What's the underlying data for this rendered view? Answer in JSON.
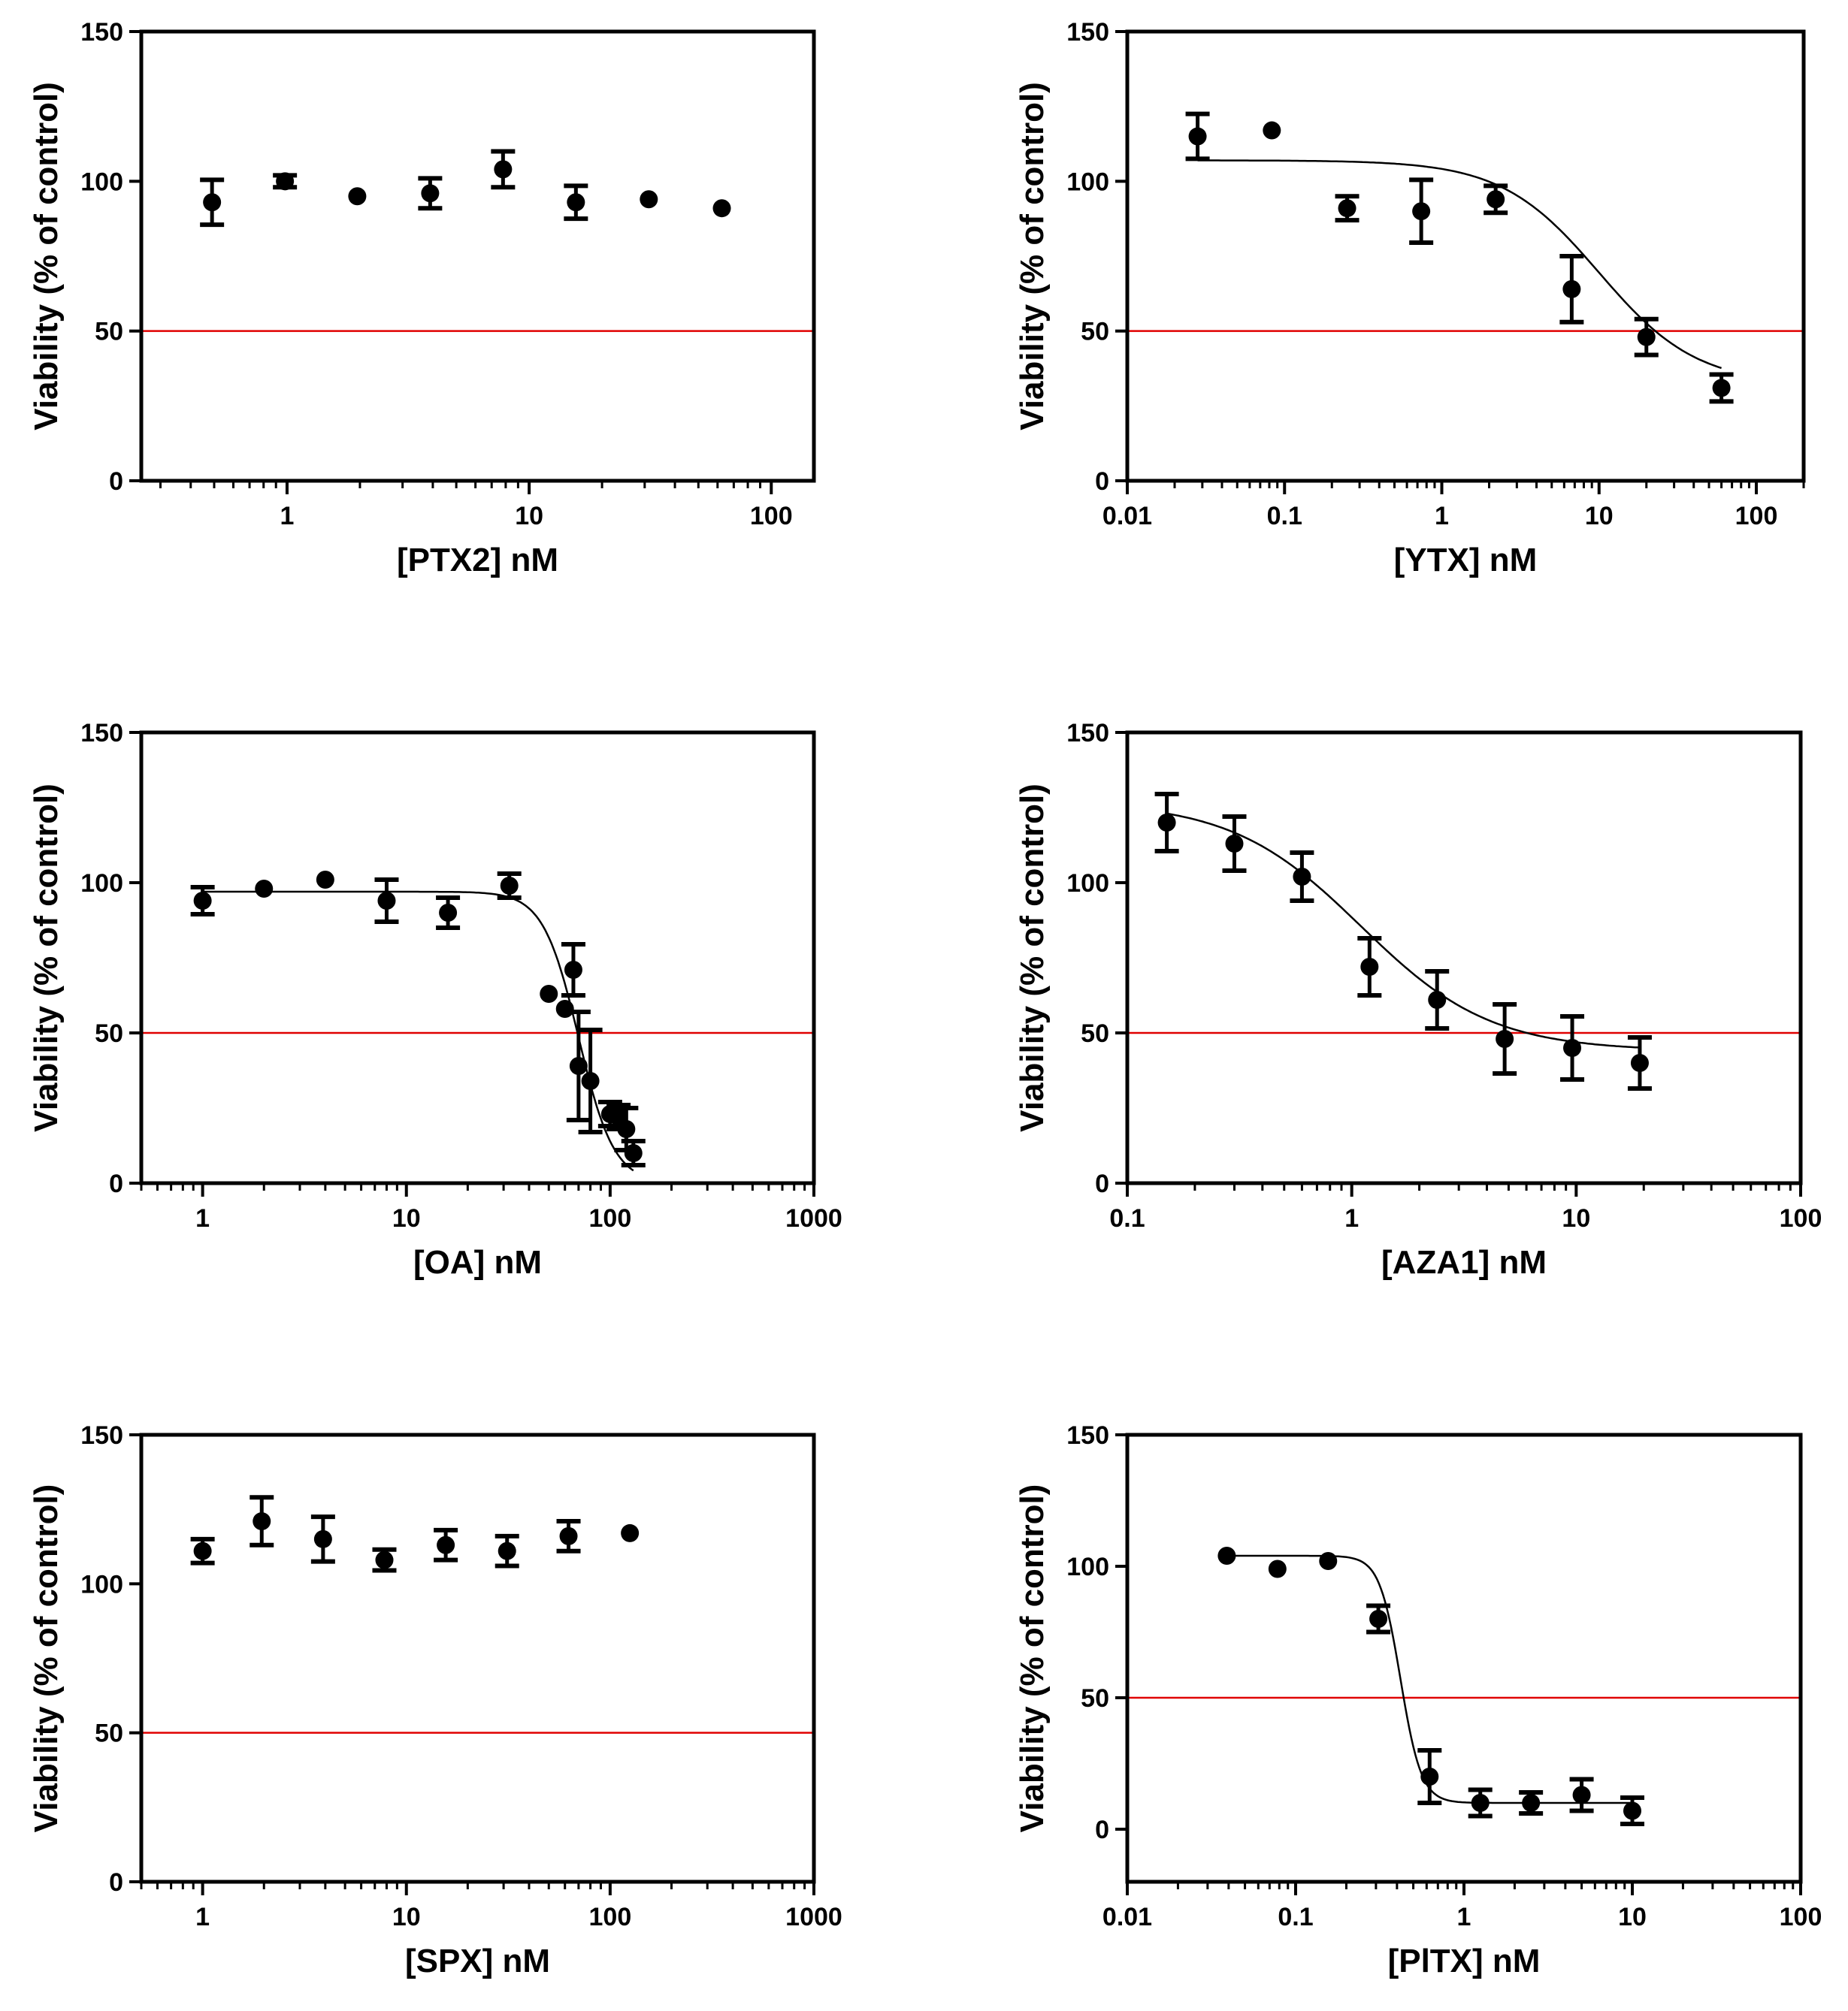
{
  "figure": {
    "reference_line": {
      "value": 50,
      "color": "#e00000"
    },
    "marker_color": "#000000"
  },
  "chart_data": [
    {
      "id": "ptx2",
      "type": "scatter",
      "title": "",
      "xlabel": "[PTX2] nM",
      "ylabel": "Viability (% of control)",
      "xscale": "log",
      "xlim": [
        0.25,
        150
      ],
      "ylim": [
        0,
        150
      ],
      "xticks": [
        1,
        10,
        100
      ],
      "xtick_labels": [
        "1",
        "10",
        "100"
      ],
      "yticks": [
        0,
        50,
        100,
        150
      ],
      "ytick_labels": [
        "0",
        "50",
        "100",
        "150"
      ],
      "points": [
        {
          "x": 0.49,
          "y": 93,
          "err": 7.5
        },
        {
          "x": 0.98,
          "y": 100,
          "err": 2
        },
        {
          "x": 1.95,
          "y": 95,
          "err": 0
        },
        {
          "x": 3.9,
          "y": 96,
          "err": 5
        },
        {
          "x": 7.8,
          "y": 104,
          "err": 6
        },
        {
          "x": 15.6,
          "y": 93,
          "err": 5.5
        },
        {
          "x": 31.2,
          "y": 94,
          "err": 0
        },
        {
          "x": 62.5,
          "y": 91,
          "err": 0
        }
      ],
      "curve": null
    },
    {
      "id": "ytx",
      "type": "scatter",
      "title": "",
      "xlabel": "[YTX] nM",
      "ylabel": "Viability (% of control)",
      "xscale": "log",
      "xlim": [
        0.01,
        200
      ],
      "ylim": [
        0,
        150
      ],
      "xticks": [
        0.01,
        0.1,
        1,
        10,
        100
      ],
      "xtick_labels": [
        "0.01",
        "0.1",
        "1",
        "10",
        "100"
      ],
      "yticks": [
        0,
        50,
        100,
        150
      ],
      "ytick_labels": [
        "0",
        "50",
        "100",
        "150"
      ],
      "points": [
        {
          "x": 0.028,
          "y": 115,
          "err": 7.5
        },
        {
          "x": 0.083,
          "y": 117,
          "err": 0
        },
        {
          "x": 0.25,
          "y": 91,
          "err": 4
        },
        {
          "x": 0.74,
          "y": 90,
          "err": 10.5
        },
        {
          "x": 2.2,
          "y": 94,
          "err": 4.5
        },
        {
          "x": 6.7,
          "y": 64,
          "err": 11
        },
        {
          "x": 20,
          "y": 48,
          "err": 6
        },
        {
          "x": 60,
          "y": 31,
          "err": 4.5
        }
      ],
      "curve": {
        "top": 107,
        "bottom": 32,
        "ec50": 10,
        "hill": 1.4,
        "x_from": 0.028,
        "x_to": 60
      }
    },
    {
      "id": "oa",
      "type": "scatter",
      "title": "",
      "xlabel": "[OA] nM",
      "ylabel": "Viability (% of control)",
      "xscale": "log",
      "xlim": [
        0.5,
        1000
      ],
      "ylim": [
        0,
        150
      ],
      "xticks": [
        1,
        10,
        100,
        1000
      ],
      "xtick_labels": [
        "1",
        "10",
        "100",
        "1000"
      ],
      "yticks": [
        0,
        50,
        100,
        150
      ],
      "ytick_labels": [
        "0",
        "50",
        "100",
        "150"
      ],
      "points": [
        {
          "x": 1,
          "y": 94,
          "err": 4.5
        },
        {
          "x": 2,
          "y": 98,
          "err": 0
        },
        {
          "x": 4,
          "y": 101,
          "err": 0
        },
        {
          "x": 8,
          "y": 94,
          "err": 7
        },
        {
          "x": 16,
          "y": 90,
          "err": 5
        },
        {
          "x": 32,
          "y": 99,
          "err": 4
        },
        {
          "x": 50,
          "y": 63,
          "err": 0
        },
        {
          "x": 60,
          "y": 58,
          "err": 0
        },
        {
          "x": 66,
          "y": 71,
          "err": 8.5
        },
        {
          "x": 70,
          "y": 39,
          "err": 18
        },
        {
          "x": 80,
          "y": 34,
          "err": 17
        },
        {
          "x": 100,
          "y": 23,
          "err": 4
        },
        {
          "x": 110,
          "y": 22,
          "err": 4
        },
        {
          "x": 120,
          "y": 18,
          "err": 7
        },
        {
          "x": 130,
          "y": 10,
          "err": 4
        }
      ],
      "curve": {
        "top": 97,
        "bottom": 0,
        "ec50": 70,
        "hill": 5,
        "x_from": 1,
        "x_to": 130
      }
    },
    {
      "id": "aza1",
      "type": "scatter",
      "title": "",
      "xlabel": "[AZA1] nM",
      "ylabel": "Viability (% of control)",
      "xscale": "log",
      "xlim": [
        0.1,
        100
      ],
      "ylim": [
        0,
        150
      ],
      "xticks": [
        0.1,
        1,
        10,
        100
      ],
      "xtick_labels": [
        "0.1",
        "1",
        "10",
        "100"
      ],
      "yticks": [
        0,
        50,
        100,
        150
      ],
      "ytick_labels": [
        "0",
        "50",
        "100",
        "150"
      ],
      "points": [
        {
          "x": 0.15,
          "y": 120,
          "err": 9.5
        },
        {
          "x": 0.3,
          "y": 113,
          "err": 9
        },
        {
          "x": 0.6,
          "y": 102,
          "err": 8
        },
        {
          "x": 1.2,
          "y": 72,
          "err": 9.5
        },
        {
          "x": 2.4,
          "y": 61,
          "err": 9.5
        },
        {
          "x": 4.8,
          "y": 48,
          "err": 11.5
        },
        {
          "x": 9.6,
          "y": 45,
          "err": 10.5
        },
        {
          "x": 19.2,
          "y": 40,
          "err": 8.5
        }
      ],
      "curve": {
        "top": 127,
        "bottom": 44,
        "ec50": 1.1,
        "hill": 1.5,
        "x_from": 0.15,
        "x_to": 19.2
      }
    },
    {
      "id": "spx",
      "type": "scatter",
      "title": "",
      "xlabel": "[SPX] nM",
      "ylabel": "Viability (% of control)",
      "xscale": "log",
      "xlim": [
        0.5,
        1000
      ],
      "ylim": [
        0,
        150
      ],
      "xticks": [
        1,
        10,
        100,
        1000
      ],
      "xtick_labels": [
        "1",
        "10",
        "100",
        "1000"
      ],
      "yticks": [
        0,
        50,
        100,
        150
      ],
      "ytick_labels": [
        "0",
        "50",
        "100",
        "150"
      ],
      "points": [
        {
          "x": 1,
          "y": 111,
          "err": 4
        },
        {
          "x": 1.95,
          "y": 121,
          "err": 8
        },
        {
          "x": 3.9,
          "y": 115,
          "err": 7.5
        },
        {
          "x": 7.8,
          "y": 108,
          "err": 3.5
        },
        {
          "x": 15.6,
          "y": 113,
          "err": 5
        },
        {
          "x": 31.2,
          "y": 111,
          "err": 5
        },
        {
          "x": 62.5,
          "y": 116,
          "err": 5
        },
        {
          "x": 125,
          "y": 117,
          "err": 0
        }
      ],
      "curve": null
    },
    {
      "id": "pitx",
      "type": "scatter",
      "title": "",
      "xlabel": "[PlTX] nM",
      "ylabel": "Viability (% of control)",
      "xscale": "log",
      "xlim": [
        0.01,
        100
      ],
      "ylim": [
        -20,
        150
      ],
      "xticks": [
        0.01,
        0.1,
        1,
        10,
        100
      ],
      "xtick_labels": [
        "0.01",
        "0.1",
        "1",
        "10",
        "100"
      ],
      "yticks": [
        0,
        50,
        100,
        150
      ],
      "ytick_labels": [
        "0",
        "50",
        "100",
        "150"
      ],
      "points": [
        {
          "x": 0.039,
          "y": 104,
          "err": 0
        },
        {
          "x": 0.078,
          "y": 99,
          "err": 0
        },
        {
          "x": 0.156,
          "y": 102,
          "err": 0
        },
        {
          "x": 0.31,
          "y": 80,
          "err": 5
        },
        {
          "x": 0.625,
          "y": 20,
          "err": 10
        },
        {
          "x": 1.25,
          "y": 10,
          "err": 5
        },
        {
          "x": 2.5,
          "y": 10,
          "err": 4
        },
        {
          "x": 5,
          "y": 13,
          "err": 6
        },
        {
          "x": 10,
          "y": 7,
          "err": 5
        }
      ],
      "curve": {
        "top": 104,
        "bottom": 10,
        "ec50": 0.42,
        "hill": 7,
        "x_from": 0.039,
        "x_to": 10
      }
    }
  ]
}
